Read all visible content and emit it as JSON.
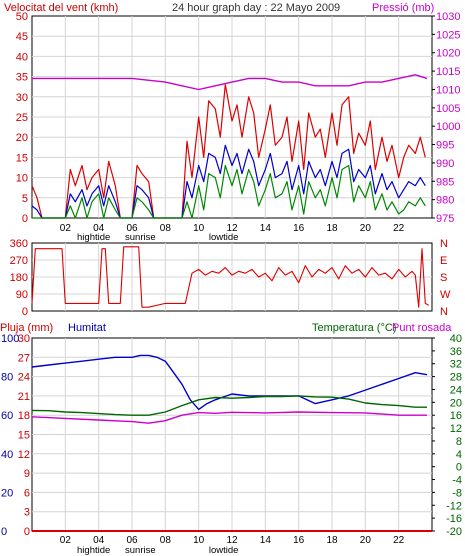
{
  "chart_data": [
    {
      "type": "line",
      "title": "24 hour graph day : 22 Mayo 2009",
      "left_axis_label": "Velocitat del vent (kmh)",
      "right_axis_label": "Pressió (mb)",
      "xlim": [
        0,
        24
      ],
      "ylim_left": [
        0,
        50
      ],
      "ylim_right": [
        975,
        1030
      ],
      "left_ticks": [
        "0",
        "5",
        "10",
        "15",
        "20",
        "25",
        "30",
        "35",
        "40",
        "45",
        "50"
      ],
      "right_ticks": [
        "975",
        "980",
        "985",
        "990",
        "995",
        "1000",
        "1005",
        "1010",
        "1015",
        "1020",
        "1025",
        "1030"
      ],
      "x_ticks": [
        "02",
        "04",
        "06",
        "08",
        "10",
        "12",
        "14",
        "16",
        "18",
        "20",
        "22"
      ],
      "tide_labels": [
        {
          "text": "hightide",
          "x": 3.7
        },
        {
          "text": "sunrise",
          "x": 6.5
        },
        {
          "text": "lowtide",
          "x": 11.5
        }
      ],
      "grid": true,
      "colors": {
        "gust": "#dd0000",
        "average": "#0000cc",
        "min": "#008800",
        "pressure": "#cc00cc",
        "left_label": "#cc0000",
        "right_label": "#cc00cc"
      },
      "series": [
        {
          "role": "gust",
          "color": "#dd0000",
          "x": [
            0,
            0.3,
            0.6,
            1,
            2,
            2.3,
            2.6,
            3,
            3.3,
            3.6,
            4,
            4.3,
            4.6,
            5,
            5.3,
            6,
            6.3,
            6.6,
            7,
            7.3,
            8,
            9,
            9.3,
            9.6,
            10,
            10.3,
            10.6,
            11,
            11.3,
            11.6,
            12,
            12.3,
            12.6,
            13,
            13.3,
            13.6,
            14,
            14.3,
            14.6,
            15,
            15.3,
            15.6,
            16,
            16.3,
            16.6,
            17,
            17.3,
            17.6,
            18,
            18.3,
            18.6,
            19,
            19.3,
            19.6,
            20,
            20.3,
            20.6,
            21,
            21.3,
            21.6,
            22,
            22.3,
            22.6,
            23,
            23.3,
            23.6
          ],
          "y": [
            8,
            5,
            0,
            0,
            0,
            12,
            8,
            13,
            7,
            10,
            12,
            5,
            14,
            8,
            0,
            0,
            13,
            11,
            9,
            0,
            0,
            0,
            19,
            10,
            25,
            15,
            29,
            27,
            20,
            33,
            24,
            28,
            20,
            30,
            26,
            15,
            22,
            28,
            18,
            20,
            25,
            14,
            24,
            12,
            26,
            20,
            22,
            15,
            26,
            18,
            28,
            30,
            16,
            21,
            18,
            24,
            12,
            20,
            14,
            18,
            10,
            15,
            18,
            16,
            20,
            15
          ]
        },
        {
          "role": "average",
          "color": "#0000cc",
          "x": [
            0,
            0.3,
            0.6,
            1,
            2,
            2.3,
            2.6,
            3,
            3.3,
            3.6,
            4,
            4.3,
            4.6,
            5,
            5.3,
            6,
            6.3,
            6.6,
            7,
            7.3,
            8,
            9,
            9.3,
            9.6,
            10,
            10.3,
            10.6,
            11,
            11.3,
            11.6,
            12,
            12.3,
            12.6,
            13,
            13.3,
            13.6,
            14,
            14.3,
            14.6,
            15,
            15.3,
            15.6,
            16,
            16.3,
            16.6,
            17,
            17.3,
            17.6,
            18,
            18.3,
            18.6,
            19,
            19.3,
            19.6,
            20,
            20.3,
            20.6,
            21,
            21.3,
            21.6,
            22,
            22.3,
            22.6,
            23,
            23.3,
            23.6
          ],
          "y": [
            3,
            2,
            0,
            0,
            0,
            6,
            4,
            7,
            3,
            6,
            8,
            3,
            8,
            4,
            0,
            0,
            8,
            7,
            5,
            0,
            0,
            0,
            9,
            5,
            13,
            9,
            16,
            15,
            11,
            18,
            13,
            16,
            11,
            17,
            14,
            8,
            12,
            16,
            10,
            11,
            14,
            7,
            13,
            6,
            14,
            10,
            12,
            8,
            14,
            10,
            16,
            17,
            9,
            12,
            10,
            13,
            6,
            11,
            7,
            9,
            5,
            7,
            9,
            8,
            10,
            8
          ]
        },
        {
          "role": "min",
          "color": "#008800",
          "x": [
            0,
            0.3,
            0.6,
            1,
            2,
            2.3,
            2.6,
            3,
            3.3,
            3.6,
            4,
            4.3,
            4.6,
            5,
            5.3,
            6,
            6.3,
            6.6,
            7,
            7.3,
            8,
            9,
            9.3,
            9.6,
            10,
            10.3,
            10.6,
            11,
            11.3,
            11.6,
            12,
            12.3,
            12.6,
            13,
            13.3,
            13.6,
            14,
            14.3,
            14.6,
            15,
            15.3,
            15.6,
            16,
            16.3,
            16.6,
            17,
            17.3,
            17.6,
            18,
            18.3,
            18.6,
            19,
            19.3,
            19.6,
            20,
            20.3,
            20.6,
            21,
            21.3,
            21.6,
            22,
            22.3,
            22.6,
            23,
            23.3,
            23.6
          ],
          "y": [
            0,
            0,
            0,
            0,
            0,
            3,
            0,
            5,
            0,
            4,
            6,
            0,
            5,
            2,
            0,
            0,
            5,
            4,
            2,
            0,
            0,
            0,
            4,
            0,
            8,
            2,
            11,
            10,
            5,
            13,
            8,
            12,
            6,
            12,
            9,
            3,
            7,
            11,
            5,
            6,
            9,
            2,
            8,
            1,
            9,
            5,
            7,
            3,
            10,
            5,
            12,
            13,
            4,
            8,
            5,
            9,
            2,
            6,
            2,
            4,
            1,
            2,
            4,
            3,
            5,
            3
          ]
        },
        {
          "role": "pressure",
          "color": "#cc00cc",
          "x": [
            0,
            2,
            4,
            6,
            8,
            9,
            10,
            11,
            12,
            13,
            14,
            15,
            16,
            17,
            18,
            19,
            20,
            21,
            22,
            23,
            23.7
          ],
          "y": [
            1013,
            1013,
            1013,
            1013,
            1012,
            1011,
            1010,
            1011,
            1012,
            1013,
            1013,
            1012,
            1012,
            1011,
            1011,
            1011,
            1012,
            1012,
            1013,
            1014,
            1013
          ]
        }
      ]
    },
    {
      "type": "line",
      "xlim": [
        0,
        24
      ],
      "ylim": [
        0,
        360
      ],
      "left_ticks": [
        "0",
        "90",
        "180",
        "270",
        "360"
      ],
      "compass_labels": [
        "N",
        "E",
        "S",
        "W",
        "N"
      ],
      "colors": {
        "direction": "#dd0000",
        "compass": "#cc0000"
      },
      "series": [
        {
          "role": "direction",
          "color": "#dd0000",
          "x": [
            0,
            0.2,
            0.3,
            0.4,
            1.8,
            2,
            2.2,
            3,
            3.2,
            4,
            4.2,
            4.4,
            4.6,
            5.3,
            5.5,
            6,
            6.4,
            6.6,
            7,
            8,
            8.5,
            9,
            9.2,
            9.6,
            10,
            10.4,
            10.8,
            11.2,
            11.6,
            12,
            12.4,
            12.8,
            13.2,
            13.6,
            14,
            14.4,
            14.8,
            15.2,
            15.6,
            16,
            16.4,
            16.8,
            17.2,
            17.6,
            18,
            18.4,
            18.8,
            19.2,
            19.6,
            20,
            20.4,
            20.8,
            21.2,
            21.6,
            22,
            22.4,
            22.8,
            23,
            23.2,
            23.4,
            23.6,
            23.8
          ],
          "y": [
            40,
            330,
            330,
            330,
            330,
            40,
            40,
            40,
            40,
            40,
            330,
            330,
            40,
            40,
            340,
            340,
            340,
            20,
            20,
            40,
            40,
            40,
            40,
            200,
            220,
            190,
            210,
            200,
            230,
            190,
            210,
            200,
            220,
            180,
            200,
            160,
            230,
            190,
            210,
            150,
            240,
            180,
            220,
            200,
            230,
            170,
            240,
            200,
            220,
            180,
            230,
            190,
            200,
            170,
            220,
            180,
            210,
            190,
            20,
            330,
            40,
            30
          ]
        }
      ]
    },
    {
      "type": "line",
      "left_axis_label": "Pluja (mm)",
      "humidity_label": "Humitat",
      "right_axis_label": "Temperatura (°C)",
      "dew_label": "Punt rosada",
      "xlim": [
        0,
        24
      ],
      "ylim_rain": [
        0,
        30
      ],
      "ylim_humidity": [
        0,
        100
      ],
      "ylim_temp": [
        -20,
        40
      ],
      "rain_ticks": [
        "0",
        "3",
        "6",
        "9",
        "12",
        "15",
        "18",
        "21",
        "24",
        "27",
        "30"
      ],
      "humidity_ticks": [
        "0",
        "20",
        "40",
        "60",
        "80",
        "100"
      ],
      "temp_ticks": [
        "-20",
        "-16",
        "-12",
        "-8",
        "-4",
        "0",
        "4",
        "8",
        "12",
        "16",
        "20",
        "24",
        "28",
        "32",
        "36",
        "40"
      ],
      "x_ticks": [
        "02",
        "04",
        "06",
        "08",
        "10",
        "12",
        "14",
        "16",
        "18",
        "20",
        "22"
      ],
      "tide_labels": [
        {
          "text": "hightide",
          "x": 3.7
        },
        {
          "text": "sunrise",
          "x": 6.5
        },
        {
          "text": "lowtide",
          "x": 11.5
        }
      ],
      "grid": true,
      "colors": {
        "humidity": "#0000cc",
        "temperature": "#006600",
        "dewpoint": "#cc00cc",
        "rain": "#dd0000",
        "rain_label": "#cc0000",
        "humidity_label": "#0000aa",
        "temp_label": "#006600",
        "dew_label": "#cc00cc"
      },
      "series": [
        {
          "role": "humidity",
          "color": "#0000cc",
          "x": [
            0,
            1,
            2,
            3,
            4,
            5,
            6,
            6.5,
            7,
            7.5,
            8,
            8.5,
            9,
            9.5,
            10,
            10.5,
            11,
            12,
            13,
            14,
            15,
            16,
            17,
            18,
            19,
            20,
            21,
            22,
            23,
            23.7
          ],
          "y": [
            85,
            86,
            87,
            88,
            89,
            90,
            90,
            91,
            91,
            90,
            88,
            82,
            76,
            68,
            63,
            66,
            68,
            71,
            70,
            70,
            70,
            70,
            66,
            68,
            70,
            73,
            76,
            79,
            82,
            81
          ]
        },
        {
          "role": "temperature",
          "color": "#006600",
          "x": [
            0,
            1,
            2,
            3,
            4,
            5,
            6,
            7,
            8,
            9,
            10,
            11,
            12,
            13,
            14,
            15,
            16,
            17,
            18,
            19,
            20,
            21,
            22,
            23,
            23.7
          ],
          "y": [
            17.5,
            17.4,
            17,
            16.8,
            16.5,
            16.2,
            16,
            16,
            17,
            19,
            20.8,
            21.5,
            21.3,
            21.5,
            21.8,
            21.8,
            22,
            21.7,
            21.6,
            21,
            19.8,
            19.3,
            19,
            18.5,
            18.5
          ]
        },
        {
          "role": "dewpoint",
          "color": "#cc00cc",
          "x": [
            0,
            2,
            4,
            6,
            7,
            8,
            9,
            10,
            11,
            12,
            14,
            16,
            18,
            20,
            22,
            23.7
          ],
          "y": [
            15.5,
            15,
            14.5,
            14,
            13.5,
            14.3,
            16,
            16.8,
            16.6,
            16.9,
            16.7,
            17,
            16.8,
            16.7,
            16,
            16
          ]
        },
        {
          "role": "rain",
          "color": "#dd0000",
          "x": [
            0,
            24
          ],
          "y": [
            0,
            0
          ]
        }
      ]
    }
  ]
}
